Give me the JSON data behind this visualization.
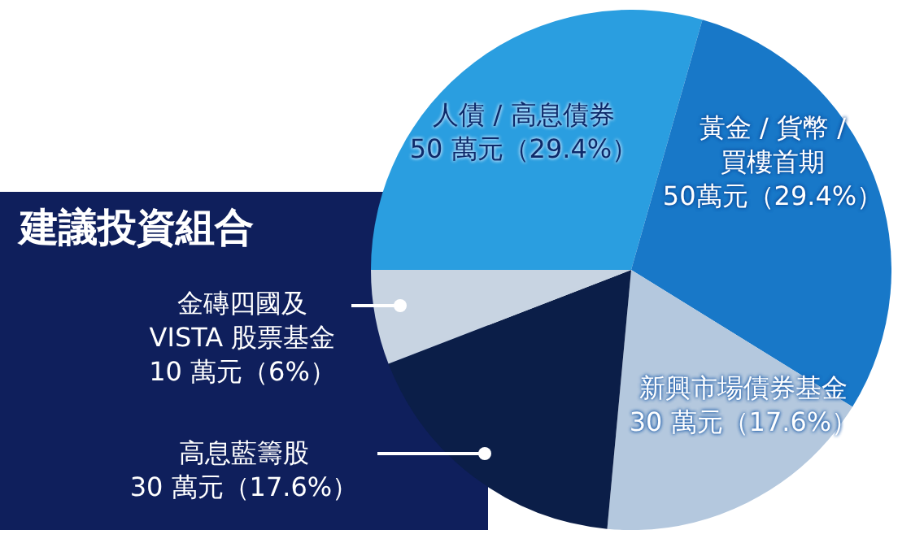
{
  "chart_data": {
    "type": "pie",
    "title": "建議投資組合",
    "categories": [
      "人債 / 高息債券",
      "黃金 / 貨幣 / 買樓首期",
      "新興市場債券基金",
      "高息藍籌股",
      "金磚四國及 VISTA 股票基金"
    ],
    "values": [
      50,
      50,
      30,
      30,
      10
    ],
    "value_labels": [
      "50 萬元（29.4%）",
      "50萬元（29.4%）",
      "30 萬元（17.6%）",
      "30 萬元（17.6%）",
      "10 萬元（6%）"
    ],
    "colors": [
      "#2a9ee0",
      "#1878c8",
      "#b4c8de",
      "#0b1e48",
      "#c8d4e2"
    ],
    "legend": false
  }
}
